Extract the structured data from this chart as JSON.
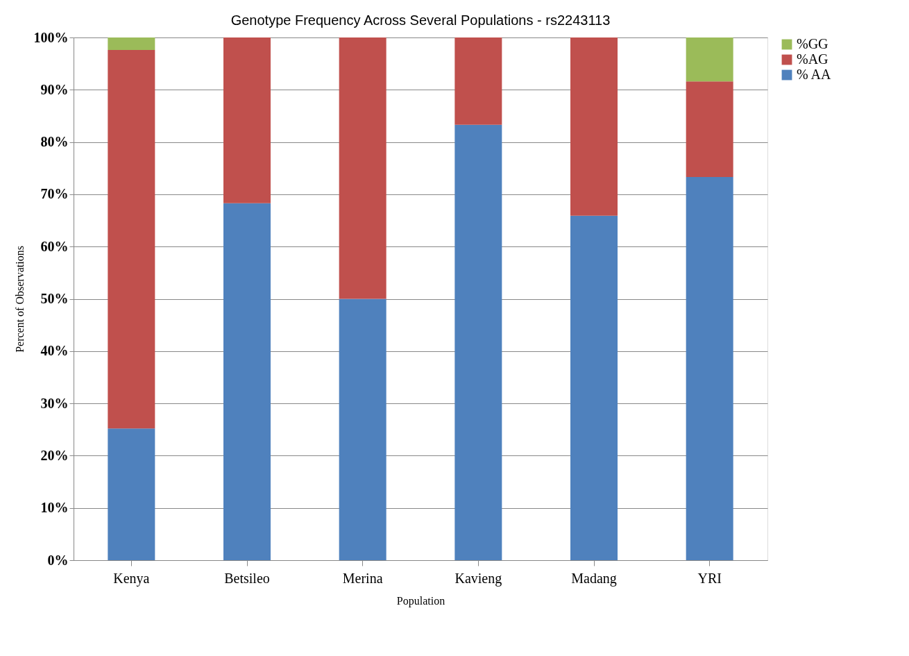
{
  "chart_data": {
    "type": "bar",
    "stacked": true,
    "title": "Genotype Frequency Across Several Populations - rs2243113",
    "xlabel": "Population",
    "ylabel": "Percent of Observations",
    "categories": [
      "Kenya",
      "Betsileo",
      "Merina",
      "Kavieng",
      "Madang",
      "YRI"
    ],
    "series": [
      {
        "name": "% AA",
        "color": "#4f81bd",
        "values": [
          25.2,
          68.3,
          50,
          83.3,
          65.9,
          73.3
        ]
      },
      {
        "name": "%AG",
        "color": "#c0504d",
        "values": [
          72.4,
          31.7,
          50,
          16.7,
          34.1,
          18.3
        ]
      },
      {
        "name": "%GG",
        "color": "#9bbb59",
        "values": [
          2.4,
          0,
          0,
          0,
          0,
          8.4
        ]
      }
    ],
    "ylim": [
      0,
      100
    ],
    "yticks": [
      {
        "value": 0,
        "label": "0%"
      },
      {
        "value": 10,
        "label": "10%"
      },
      {
        "value": 20,
        "label": "20%"
      },
      {
        "value": 30,
        "label": "30%"
      },
      {
        "value": 40,
        "label": "40%"
      },
      {
        "value": 50,
        "label": "50%"
      },
      {
        "value": 60,
        "label": "60%"
      },
      {
        "value": 70,
        "label": "70%"
      },
      {
        "value": 80,
        "label": "80%"
      },
      {
        "value": 90,
        "label": "90%"
      },
      {
        "value": 100,
        "label": "100%"
      }
    ],
    "grid": "y",
    "legend": "right"
  }
}
